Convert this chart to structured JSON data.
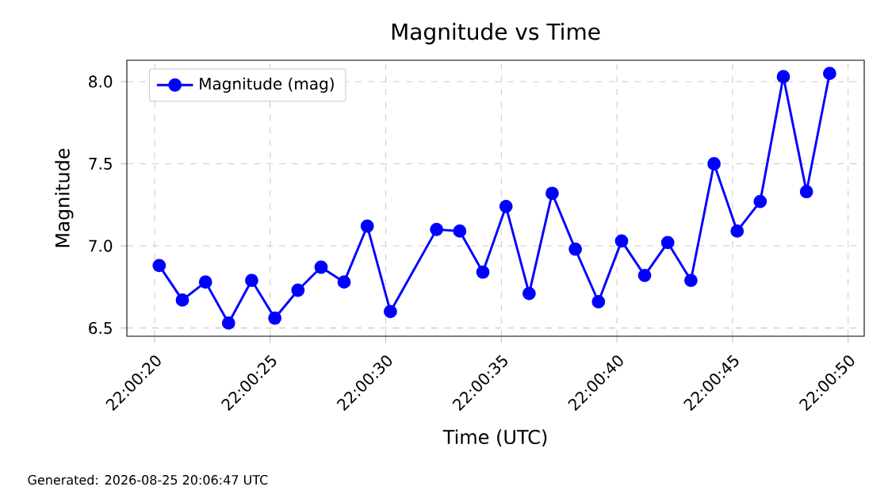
{
  "chart_data": {
    "type": "line",
    "title": "Magnitude vs Time",
    "xlabel": "Time (UTC)",
    "ylabel": "Magnitude",
    "annotations": [
      "Generated: 2026-08-25 20:06:47 UTC"
    ],
    "x": [
      22.005611,
      22.005889,
      22.006167,
      22.006444,
      22.006722,
      22.007,
      22.007278,
      22.007556,
      22.007833,
      22.008111,
      22.008389,
      22.008944,
      22.009222,
      22.0095,
      22.009778,
      22.010056,
      22.010333,
      22.010611,
      22.010889,
      22.011167,
      22.011444,
      22.011722,
      22.012,
      22.012278,
      22.012556,
      22.012833,
      22.013111,
      22.013389,
      22.013667
    ],
    "series": [
      {
        "name": "Magnitude (mag)",
        "color": "#0000ff",
        "values": [
          6.88,
          6.67,
          6.78,
          6.53,
          6.79,
          6.56,
          6.73,
          6.87,
          6.78,
          7.12,
          6.6,
          7.1,
          7.09,
          6.84,
          7.24,
          6.71,
          7.32,
          6.98,
          6.66,
          7.03,
          6.82,
          7.02,
          6.79,
          7.5,
          7.09,
          7.27,
          8.03,
          7.33,
          8.05
        ]
      }
    ],
    "xlim": [
      22.005222,
      22.014083
    ],
    "ylim": [
      6.45,
      8.13
    ],
    "xticks": [
      {
        "value": 22.005556,
        "label": "22:00:20"
      },
      {
        "value": 22.006944,
        "label": "22:00:25"
      },
      {
        "value": 22.008333,
        "label": "22:00:30"
      },
      {
        "value": 22.009722,
        "label": "22:00:35"
      },
      {
        "value": 22.011111,
        "label": "22:00:40"
      },
      {
        "value": 22.0125,
        "label": "22:00:45"
      },
      {
        "value": 22.013889,
        "label": "22:00:50"
      }
    ],
    "yticks": [
      {
        "value": 6.5,
        "label": "6.5"
      },
      {
        "value": 7.0,
        "label": "7.0"
      },
      {
        "value": 7.5,
        "label": "7.5"
      },
      {
        "value": 8.0,
        "label": "8.0"
      }
    ],
    "grid": true,
    "legend": "top left",
    "marker": "circle",
    "line_style": "solid"
  }
}
